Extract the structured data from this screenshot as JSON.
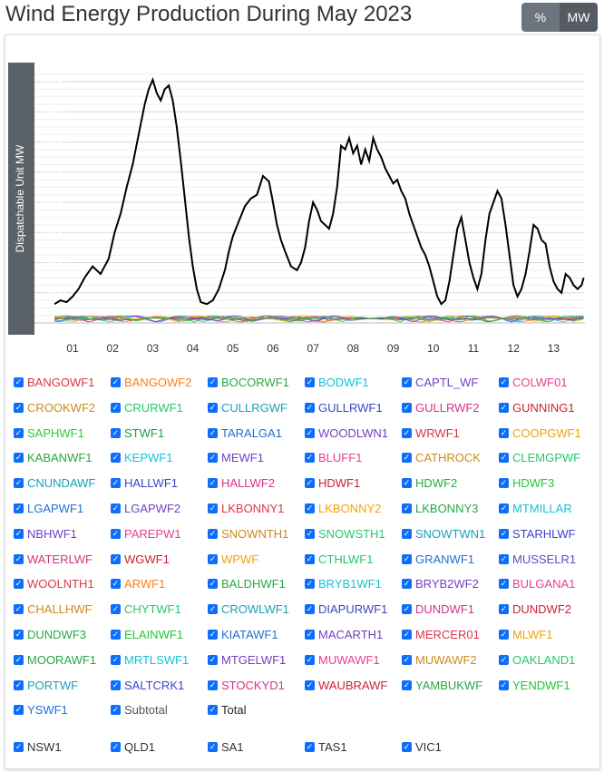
{
  "title": "Wind Energy Production During May 2023",
  "unit_toggle": {
    "percent_label": "%",
    "mw_label": "MW",
    "selected": "MW"
  },
  "colors": {
    "plot_bg": "#ffffff",
    "axis_band": "#5a6268",
    "total_line": "#000000",
    "checkbox": "#0d6efd"
  },
  "chart_data": {
    "type": "line",
    "title": "",
    "xlabel": "",
    "ylabel": "Dispatchable Unit MW",
    "x_ticks": [
      "01",
      "02",
      "03",
      "04",
      "05",
      "06",
      "07",
      "08",
      "09",
      "10",
      "11",
      "12",
      "13"
    ],
    "y_ticks": [
      0,
      800,
      1600,
      2400,
      3200,
      4000,
      4800,
      5600,
      6400
    ],
    "xlim": [
      0.5,
      13.8
    ],
    "ylim": [
      0,
      6700
    ],
    "grid": true,
    "series": [
      {
        "name": "Total",
        "color": "#000000",
        "x": [
          0.55,
          0.7,
          0.85,
          1.0,
          1.15,
          1.3,
          1.5,
          1.7,
          1.9,
          2.05,
          2.2,
          2.35,
          2.5,
          2.65,
          2.8,
          2.9,
          3.0,
          3.1,
          3.2,
          3.3,
          3.4,
          3.5,
          3.6,
          3.7,
          3.8,
          3.9,
          4.0,
          4.1,
          4.2,
          4.35,
          4.5,
          4.65,
          4.8,
          4.9,
          5.0,
          5.15,
          5.3,
          5.45,
          5.6,
          5.75,
          5.9,
          6.0,
          6.1,
          6.2,
          6.3,
          6.45,
          6.6,
          6.7,
          6.8,
          6.9,
          7.0,
          7.1,
          7.2,
          7.3,
          7.4,
          7.5,
          7.6,
          7.7,
          7.8,
          7.9,
          8.0,
          8.1,
          8.2,
          8.3,
          8.4,
          8.5,
          8.6,
          8.7,
          8.8,
          8.9,
          9.0,
          9.1,
          9.2,
          9.3,
          9.4,
          9.5,
          9.6,
          9.7,
          9.8,
          9.9,
          10.0,
          10.1,
          10.2,
          10.3,
          10.4,
          10.5,
          10.6,
          10.7,
          10.8,
          10.9,
          11.0,
          11.1,
          11.2,
          11.3,
          11.4,
          11.5,
          11.6,
          11.7,
          11.8,
          11.9,
          12.0,
          12.1,
          12.2,
          12.3,
          12.4,
          12.5,
          12.6,
          12.7,
          12.8,
          12.9,
          13.0,
          13.1,
          13.2,
          13.3,
          13.4,
          13.5,
          13.6,
          13.7,
          13.75
        ],
        "values": [
          500,
          600,
          550,
          700,
          900,
          1200,
          1500,
          1300,
          1700,
          2400,
          2900,
          3600,
          4200,
          5000,
          5800,
          6200,
          6450,
          6100,
          5900,
          6200,
          6300,
          5900,
          5200,
          4300,
          3300,
          2300,
          1500,
          900,
          550,
          500,
          600,
          900,
          1400,
          1900,
          2300,
          2700,
          3100,
          3300,
          3400,
          3900,
          3750,
          3200,
          2600,
          2200,
          1900,
          1500,
          1400,
          1600,
          2000,
          2700,
          3200,
          3000,
          2700,
          2600,
          2500,
          2900,
          3600,
          4700,
          4600,
          4900,
          4500,
          4700,
          4200,
          4600,
          4300,
          4900,
          4600,
          4400,
          4100,
          3900,
          3700,
          3800,
          3500,
          3300,
          2900,
          2600,
          2300,
          2000,
          1800,
          1500,
          1100,
          700,
          500,
          600,
          1100,
          1800,
          2500,
          2800,
          2200,
          1600,
          1200,
          900,
          1300,
          2200,
          2900,
          3200,
          3500,
          3300,
          2600,
          1800,
          1000,
          700,
          900,
          1300,
          1900,
          2600,
          2500,
          2200,
          2100,
          1500,
          1100,
          900,
          800,
          1300,
          1200,
          1000,
          900,
          1000,
          1200
        ]
      }
    ]
  },
  "legend": {
    "items": [
      {
        "label": "BANGOWF1",
        "color": "#dc3545"
      },
      {
        "label": "BANGOWF2",
        "color": "#fd7e14"
      },
      {
        "label": "BOCORWF1",
        "color": "#28a745"
      },
      {
        "label": "BODWF1",
        "color": "#17c1d6"
      },
      {
        "label": "CAPTL_WF",
        "color": "#6f42c1"
      },
      {
        "label": "COLWF01",
        "color": "#e83e8c"
      },
      {
        "label": "CROOKWF2",
        "color": "#cc8a1e"
      },
      {
        "label": "CRURWF1",
        "color": "#28c76f"
      },
      {
        "label": "CULLRGWF",
        "color": "#17a2b8"
      },
      {
        "label": "GULLRWF1",
        "color": "#3d44c9"
      },
      {
        "label": "GULLRWF2",
        "color": "#d63384"
      },
      {
        "label": "GUNNING1",
        "color": "#c82333"
      },
      {
        "label": "SAPHWF1",
        "color": "#2ecc40"
      },
      {
        "label": "STWF1",
        "color": "#20a33a"
      },
      {
        "label": "TARALGA1",
        "color": "#1f6fd1"
      },
      {
        "label": "WOODLWN1",
        "color": "#6f42c1"
      },
      {
        "label": "WRWF1",
        "color": "#dc3545"
      },
      {
        "label": "COOPGWF1",
        "color": "#f0a30a"
      },
      {
        "label": "KABANWF1",
        "color": "#28a745"
      },
      {
        "label": "KEPWF1",
        "color": "#17c1d6"
      },
      {
        "label": "MEWF1",
        "color": "#6f42c1"
      },
      {
        "label": "BLUFF1",
        "color": "#e83e8c"
      },
      {
        "label": "CATHROCK",
        "color": "#cc8a1e"
      },
      {
        "label": "CLEMGPWF",
        "color": "#28c76f"
      },
      {
        "label": "CNUNDAWF",
        "color": "#17a2b8"
      },
      {
        "label": "HALLWF1",
        "color": "#3d44c9"
      },
      {
        "label": "HALLWF2",
        "color": "#d63384"
      },
      {
        "label": "HDWF1",
        "color": "#c82333"
      },
      {
        "label": "HDWF2",
        "color": "#28a745"
      },
      {
        "label": "HDWF3",
        "color": "#20c933"
      },
      {
        "label": "LGAPWF1",
        "color": "#1f6fd1"
      },
      {
        "label": "LGAPWF2",
        "color": "#6f42c1"
      },
      {
        "label": "LKBONNY1",
        "color": "#dc3545"
      },
      {
        "label": "LKBONNY2",
        "color": "#f0a30a"
      },
      {
        "label": "LKBONNY3",
        "color": "#28a745"
      },
      {
        "label": "MTMILLAR",
        "color": "#17c1d6"
      },
      {
        "label": "NBHWF1",
        "color": "#6f42c1"
      },
      {
        "label": "PAREPW1",
        "color": "#e83e8c"
      },
      {
        "label": "SNOWNTH1",
        "color": "#cc8a1e"
      },
      {
        "label": "SNOWSTH1",
        "color": "#28c76f"
      },
      {
        "label": "SNOWTWN1",
        "color": "#17a2b8"
      },
      {
        "label": "STARHLWF",
        "color": "#3d44c9"
      },
      {
        "label": "WATERLWF",
        "color": "#d63384"
      },
      {
        "label": "WGWF1",
        "color": "#c82333"
      },
      {
        "label": "WPWF",
        "color": "#f0a30a"
      },
      {
        "label": "CTHLWF1",
        "color": "#28c76f"
      },
      {
        "label": "GRANWF1",
        "color": "#1f6fd1"
      },
      {
        "label": "MUSSELR1",
        "color": "#6f42c1"
      },
      {
        "label": "WOOLNTH1",
        "color": "#dc3545"
      },
      {
        "label": "ARWF1",
        "color": "#fd7e14"
      },
      {
        "label": "BALDHWF1",
        "color": "#28a745"
      },
      {
        "label": "BRYB1WF1",
        "color": "#17c1d6"
      },
      {
        "label": "BRYB2WF2",
        "color": "#6f42c1"
      },
      {
        "label": "BULGANA1",
        "color": "#e83e8c"
      },
      {
        "label": "CHALLHWF",
        "color": "#cc8a1e"
      },
      {
        "label": "CHYTWF1",
        "color": "#28c76f"
      },
      {
        "label": "CROWLWF1",
        "color": "#17a2b8"
      },
      {
        "label": "DIAPURWF1",
        "color": "#3d44c9"
      },
      {
        "label": "DUNDWF1",
        "color": "#d63384"
      },
      {
        "label": "DUNDWF2",
        "color": "#c82333"
      },
      {
        "label": "DUNDWF3",
        "color": "#28a745"
      },
      {
        "label": "ELAINWF1",
        "color": "#20c933"
      },
      {
        "label": "KIATAWF1",
        "color": "#1f6fd1"
      },
      {
        "label": "MACARTH1",
        "color": "#6f42c1"
      },
      {
        "label": "MERCER01",
        "color": "#dc3545"
      },
      {
        "label": "MLWF1",
        "color": "#f0a30a"
      },
      {
        "label": "MOORAWF1",
        "color": "#28a745"
      },
      {
        "label": "MRTLSWF1",
        "color": "#17c1d6"
      },
      {
        "label": "MTGELWF1",
        "color": "#6f42c1"
      },
      {
        "label": "MUWAWF1",
        "color": "#e83e8c"
      },
      {
        "label": "MUWAWF2",
        "color": "#cc8a1e"
      },
      {
        "label": "OAKLAND1",
        "color": "#28c76f"
      },
      {
        "label": "PORTWF",
        "color": "#17a2b8"
      },
      {
        "label": "SALTCRK1",
        "color": "#3d44c9"
      },
      {
        "label": "STOCKYD1",
        "color": "#d63384"
      },
      {
        "label": "WAUBRAWF",
        "color": "#c82333"
      },
      {
        "label": "YAMBUKWF",
        "color": "#28a745"
      },
      {
        "label": "YENDWF1",
        "color": "#20c933"
      },
      {
        "label": "YSWF1",
        "color": "#1f6fd1"
      },
      {
        "label": "Subtotal",
        "color": "#555555"
      },
      {
        "label": "Total",
        "color": "#222222"
      }
    ]
  },
  "regions": {
    "items": [
      {
        "label": "NSW1",
        "color": "#333333"
      },
      {
        "label": "QLD1",
        "color": "#333333"
      },
      {
        "label": "SA1",
        "color": "#333333"
      },
      {
        "label": "TAS1",
        "color": "#333333"
      },
      {
        "label": "VIC1",
        "color": "#333333"
      }
    ]
  }
}
